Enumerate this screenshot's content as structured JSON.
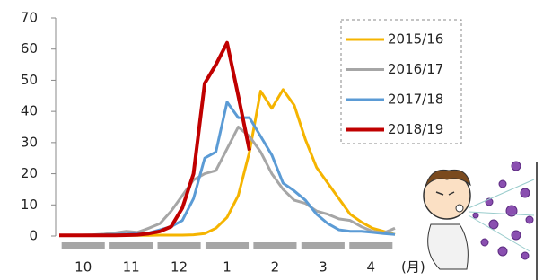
{
  "chart_data": {
    "type": "line",
    "x": [
      10,
      10.2333,
      10.4667,
      10.7,
      10.9333,
      11.1667,
      11.4,
      11.6333,
      11.8667,
      12.1,
      12.3333,
      12.5667,
      12.8,
      13.0333,
      13.2667,
      13.5,
      13.7333,
      13.9667,
      14.2,
      14.4333,
      14.6667,
      14.9,
      15.1333,
      15.3667,
      15.6,
      15.8333,
      16.0667,
      16.3,
      16.5333,
      16.7667,
      17
    ],
    "xlim": [
      10,
      17
    ],
    "xticks": [
      {
        "value": 10.5,
        "label": "10"
      },
      {
        "value": 11.5,
        "label": "11"
      },
      {
        "value": 12.5,
        "label": "12"
      },
      {
        "value": 13.5,
        "label": "1"
      },
      {
        "value": 14.5,
        "label": "2"
      },
      {
        "value": 15.5,
        "label": "3"
      },
      {
        "value": 16.5,
        "label": "4"
      }
    ],
    "x_label": "(月)",
    "ylim": [
      0,
      70
    ],
    "yticks": [
      0,
      10,
      20,
      30,
      40,
      50,
      60,
      70
    ],
    "grid": false,
    "legend": "upper right",
    "series": [
      {
        "name": "2015/16",
        "color": "#f5b400",
        "values": [
          0.2,
          0.2,
          0.2,
          0.2,
          0.2,
          0.2,
          0.2,
          0.2,
          0.2,
          0.3,
          0.3,
          0.3,
          0.4,
          0.8,
          2.5,
          6,
          13,
          27,
          46.5,
          41,
          47,
          42,
          31,
          22,
          17,
          12,
          7,
          4.5,
          2.5,
          1.5,
          0.5
        ]
      },
      {
        "name": "2016/17",
        "color": "#a6a6a6",
        "values": [
          0.3,
          0.3,
          0.3,
          0.4,
          0.6,
          1,
          1.5,
          1.2,
          2.5,
          4,
          8,
          13,
          18,
          20,
          21,
          28,
          35,
          32,
          27,
          20,
          15,
          11.5,
          10.5,
          8,
          7,
          5.5,
          5,
          3,
          1.5,
          1,
          2.5
        ]
      },
      {
        "name": "2017/18",
        "color": "#5b9bd5",
        "values": [
          0.2,
          0.2,
          0.2,
          0.3,
          0.4,
          0.5,
          0.6,
          0.8,
          1,
          2,
          3,
          5,
          12,
          25,
          27,
          43,
          38,
          38,
          32,
          26,
          17,
          14.5,
          11.5,
          7,
          4,
          2,
          1.5,
          1.5,
          1.2,
          0.8,
          0.5
        ]
      },
      {
        "name": "2018/19",
        "color": "#c00000",
        "values": [
          0.2,
          0.2,
          0.2,
          0.2,
          0.2,
          0.2,
          0.3,
          0.4,
          0.8,
          1.5,
          3,
          9,
          20,
          49,
          55,
          62,
          45,
          27.5,
          null,
          null,
          null,
          null,
          null,
          null,
          null,
          null,
          null,
          null,
          null,
          null,
          null
        ]
      }
    ]
  }
}
